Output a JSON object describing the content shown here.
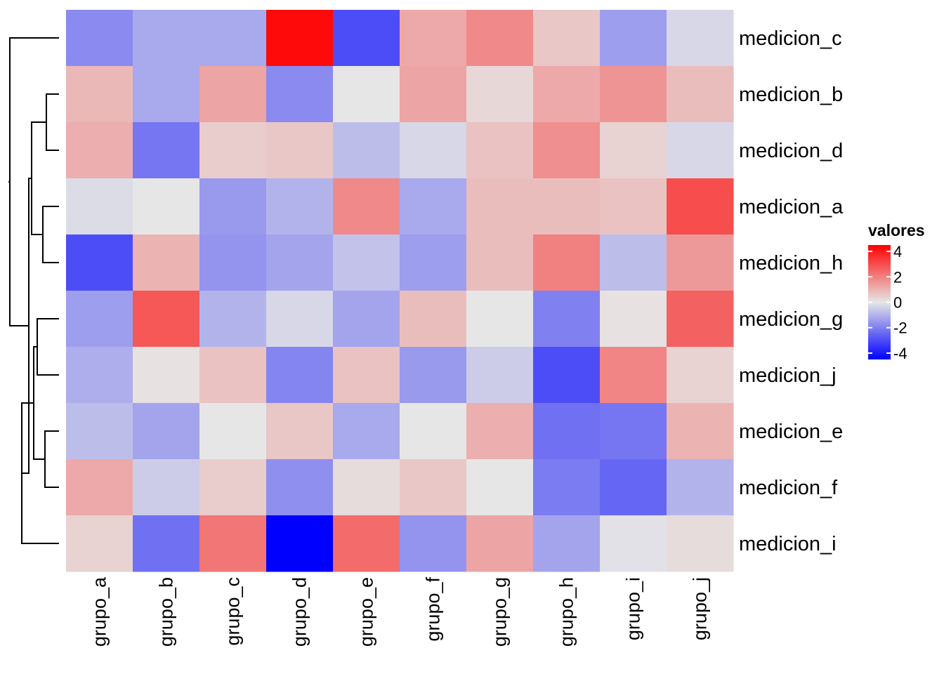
{
  "chart_data": {
    "type": "heatmap",
    "title": "",
    "xlabel": "",
    "ylabel": "",
    "rows": [
      "medicion_c",
      "medicion_b",
      "medicion_d",
      "medicion_a",
      "medicion_h",
      "medicion_g",
      "medicion_j",
      "medicion_e",
      "medicion_f",
      "medicion_i"
    ],
    "columns": [
      "grupo_a",
      "grupo_b",
      "grupo_c",
      "grupo_d",
      "grupo_e",
      "grupo_f",
      "grupo_g",
      "grupo_h",
      "grupo_i",
      "grupo_j"
    ],
    "values": [
      [
        -1.8,
        -1.2,
        -1.2,
        4.3,
        -3.0,
        1.2,
        1.8,
        0.6,
        -1.4,
        -0.3
      ],
      [
        0.9,
        -1.2,
        1.3,
        -1.8,
        0.0,
        1.3,
        0.3,
        1.2,
        1.6,
        0.8
      ],
      [
        1.1,
        -2.2,
        0.5,
        0.6,
        -0.8,
        -0.3,
        0.7,
        1.7,
        0.4,
        -0.3
      ],
      [
        -0.2,
        0.0,
        -1.5,
        -1.0,
        1.8,
        -1.2,
        0.8,
        0.8,
        0.7,
        3.0
      ],
      [
        -3.0,
        1.0,
        -1.6,
        -1.3,
        -0.7,
        -1.4,
        0.8,
        2.0,
        -0.8,
        1.5
      ],
      [
        -1.4,
        2.8,
        -1.0,
        -0.3,
        -1.3,
        0.8,
        0.0,
        -2.0,
        0.1,
        2.6
      ],
      [
        -1.1,
        0.1,
        0.7,
        -1.9,
        0.7,
        -1.5,
        -0.5,
        -3.0,
        1.9,
        0.4
      ],
      [
        -0.8,
        -1.3,
        0.0,
        0.6,
        -1.2,
        0.0,
        1.1,
        -2.3,
        -2.2,
        1.0
      ],
      [
        1.2,
        -0.5,
        0.5,
        -1.7,
        0.2,
        0.6,
        0.0,
        -2.1,
        -2.5,
        -1.0
      ],
      [
        0.4,
        -2.3,
        2.2,
        -4.5,
        2.4,
        -1.6,
        1.3,
        -1.3,
        -0.1,
        0.2
      ]
    ],
    "zlim": [
      -4.5,
      4.5
    ],
    "color_scale": {
      "low": "#0000ff",
      "mid": "#e6e6e6",
      "high": "#ff0000"
    },
    "legend": {
      "title": "valores",
      "ticks": [
        4,
        2,
        0,
        -2,
        -4
      ],
      "tick_labels": [
        "4",
        "2",
        "0",
        "-2",
        "-4"
      ],
      "position": "right"
    },
    "row_dendrogram": {
      "side": "left",
      "merges": [
        [
          1,
          2
        ],
        [
          3,
          4
        ],
        [
          5,
          6
        ],
        [
          7,
          8
        ],
        [
          9,
          10
        ],
        [
          11,
          12
        ],
        [
          13,
          14
        ],
        [
          15,
          16
        ],
        [
          17,
          18
        ]
      ]
    }
  }
}
